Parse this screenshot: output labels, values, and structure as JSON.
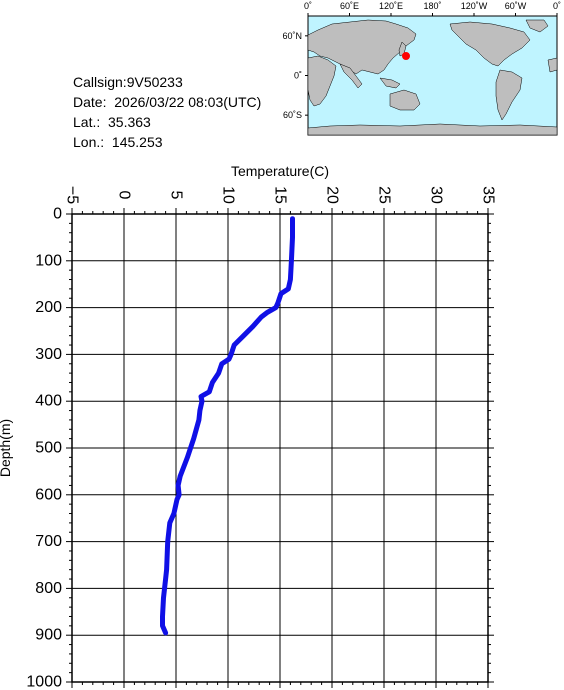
{
  "info": {
    "callsign": "Callsign:9V50233",
    "date": "Date:  2026/03/22 08:03(UTC)",
    "lat": "Lat.:  35.363",
    "lon": "Lon.:  145.253"
  },
  "map": {
    "lon_labels": [
      "0˚",
      "60˚E",
      "120˚E",
      "180˚",
      "120˚W",
      "60˚W",
      "0˚"
    ],
    "lat_labels": [
      "60˚N",
      "0˚",
      "60˚S"
    ],
    "marker": {
      "lat": 35.363,
      "lon": 145.253,
      "color": "#ff0000"
    },
    "ocean_color": "#bff4ff",
    "land_color": "#bebebe"
  },
  "chart_data": {
    "type": "line",
    "title": "",
    "xlabel": "Temperature(C)",
    "ylabel": "Depth(m)",
    "xlim": [
      -5,
      35
    ],
    "ylim": [
      0,
      1000
    ],
    "x_ticks": [
      "−5",
      "0",
      "5",
      "10",
      "15",
      "20",
      "25",
      "30",
      "35"
    ],
    "y_ticks": [
      "0",
      "100",
      "200",
      "300",
      "400",
      "500",
      "600",
      "700",
      "800",
      "900",
      "1000"
    ],
    "grid": true,
    "y_inverted": true,
    "series_color": "#1010e6",
    "series": [
      {
        "x": [
          16.2,
          16.2,
          16.1,
          16.0,
          15.8,
          15.1,
          14.8,
          14.6,
          13.8,
          13.2,
          12.4,
          11.5,
          10.6,
          10.3,
          10.1,
          9.4,
          9.1,
          8.5,
          8.2,
          7.4,
          7.5,
          7.3,
          7.2,
          6.7,
          6.1,
          5.4,
          5.2,
          5.3,
          5.1,
          4.8,
          4.4,
          4.2,
          4.1,
          4.0,
          3.8,
          3.7,
          3.7,
          4.0
        ],
        "y": [
          10,
          50,
          100,
          140,
          160,
          170,
          190,
          200,
          210,
          220,
          240,
          260,
          280,
          300,
          310,
          320,
          340,
          360,
          380,
          390,
          400,
          420,
          440,
          480,
          520,
          560,
          580,
          600,
          610,
          640,
          660,
          700,
          760,
          780,
          820,
          860,
          880,
          895
        ]
      }
    ]
  }
}
